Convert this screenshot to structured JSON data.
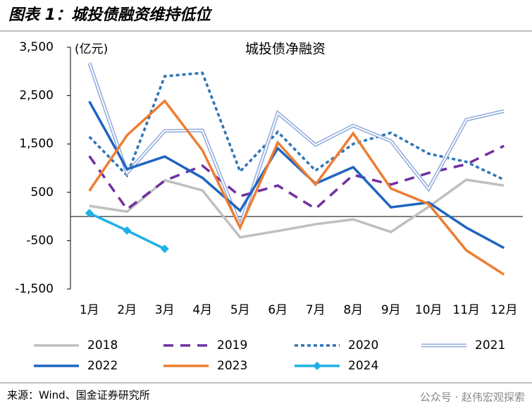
{
  "header": "图表 1：城投债融资维持低位",
  "source": "来源：Wind、国金证券研究所",
  "watermark": "公众号 · 赵伟宏观探索",
  "chart_data": {
    "type": "line",
    "title": "城投债净融资",
    "y_label": "(亿元)",
    "categories": [
      "1月",
      "2月",
      "3月",
      "4月",
      "5月",
      "6月",
      "7月",
      "8月",
      "9月",
      "10月",
      "11月",
      "12月"
    ],
    "ylim": [
      -1500,
      3500
    ],
    "yticks": [
      {
        "value": 3500,
        "label": "3,500"
      },
      {
        "value": 2500,
        "label": "2,500"
      },
      {
        "value": 1500,
        "label": "1,500"
      },
      500,
      -500,
      {
        "value": -1500,
        "label": "-1,500"
      }
    ],
    "grid": false,
    "legend": "bottom",
    "series": [
      {
        "name": "2018",
        "color": "#bfbfbf",
        "line_style": "solid",
        "values": [
          220,
          100,
          750,
          540,
          -430,
          -300,
          -160,
          -60,
          -320,
          200,
          760,
          640
        ]
      },
      {
        "name": "2019",
        "color": "#7030a0",
        "line_style": "dash",
        "values": [
          1250,
          150,
          740,
          1050,
          420,
          640,
          160,
          860,
          660,
          900,
          1080,
          1460
        ]
      },
      {
        "name": "2020",
        "color": "#2e75b6",
        "line_style": "dot",
        "values": [
          1650,
          850,
          2900,
          2970,
          930,
          1750,
          950,
          1500,
          1730,
          1300,
          1130,
          760
        ]
      },
      {
        "name": "2021",
        "color": "#8faadc",
        "line_style": "double",
        "values": [
          3180,
          900,
          1770,
          1780,
          -190,
          2140,
          1480,
          1880,
          1560,
          570,
          2000,
          2180
        ]
      },
      {
        "name": "2022",
        "color": "#1f64c0",
        "line_style": "solid",
        "values": [
          2380,
          980,
          1240,
          800,
          120,
          1410,
          680,
          1020,
          190,
          290,
          -230,
          -650
        ]
      },
      {
        "name": "2023",
        "color": "#ed7d31",
        "line_style": "solid",
        "values": [
          530,
          1680,
          2390,
          1370,
          -230,
          1530,
          660,
          1720,
          580,
          260,
          -700,
          -1200
        ]
      },
      {
        "name": "2024",
        "color": "#1fb1e6",
        "line_style": "solid",
        "marker": "diamond",
        "values": [
          70,
          -290,
          -670,
          null,
          null,
          null,
          null,
          null,
          null,
          null,
          null,
          null
        ]
      }
    ]
  }
}
